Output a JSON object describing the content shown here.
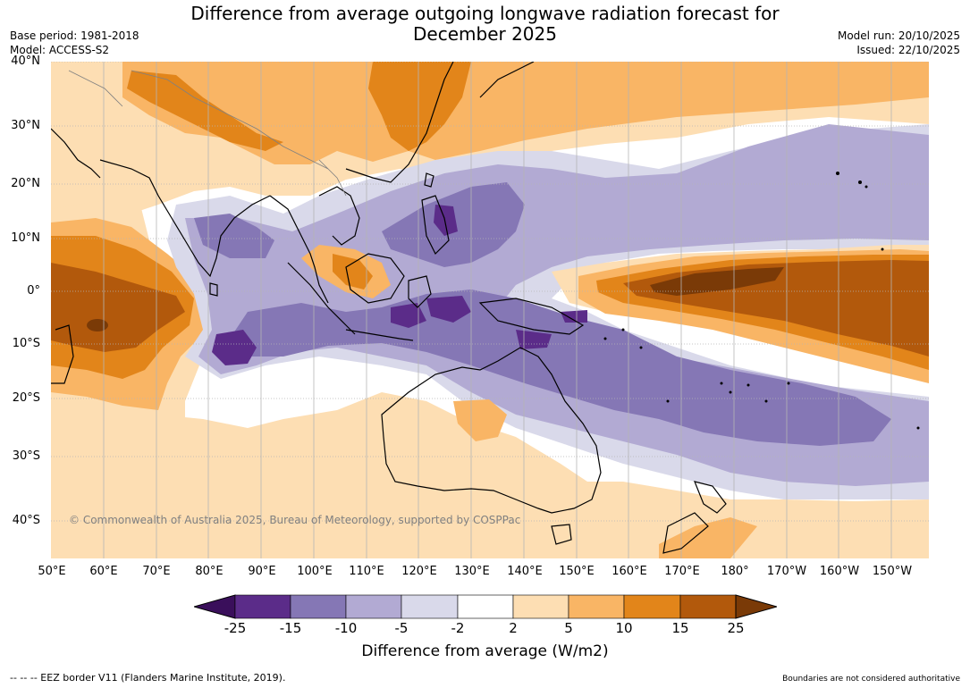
{
  "title_line1": "Difference from average outgoing longwave radiation forecast for",
  "title_line2": "December 2025",
  "base_period": "Base period: 1981-2018",
  "model": "Model: ACCESS-S2",
  "model_run": "Model run: 20/10/2025",
  "issued": "Issued: 22/10/2025",
  "copyright": "© Commonwealth of Australia 2025, Bureau of Meteorology, supported by COSPPac",
  "lat_labels": [
    "40°N",
    "30°N",
    "20°N",
    "10°N",
    "0°",
    "10°S",
    "20°S",
    "30°S",
    "40°S"
  ],
  "lon_labels": [
    "50°E",
    "60°E",
    "70°E",
    "80°E",
    "90°E",
    "100°E",
    "110°E",
    "120°E",
    "130°E",
    "140°E",
    "150°E",
    "160°E",
    "170°E",
    "180°",
    "170°W",
    "160°W",
    "150°W"
  ],
  "colorbar": {
    "title": "Difference from average (W/m2)",
    "ticks": [
      "-25",
      "-15",
      "-10",
      "-5",
      "-2",
      "2",
      "5",
      "10",
      "15",
      "25"
    ],
    "colors": [
      "#3a0f5b",
      "#5b2c89",
      "#8577b5",
      "#b2aad3",
      "#d9d9ea",
      "#ffffff",
      "#fddeb3",
      "#f9b565",
      "#e2851a",
      "#b2590c",
      "#7a3a07"
    ]
  },
  "footer_left": "--  --  -- EEZ border V11 (Flanders Marine Institute, 2019).",
  "footer_right": "Boundaries are not considered authoritative"
}
